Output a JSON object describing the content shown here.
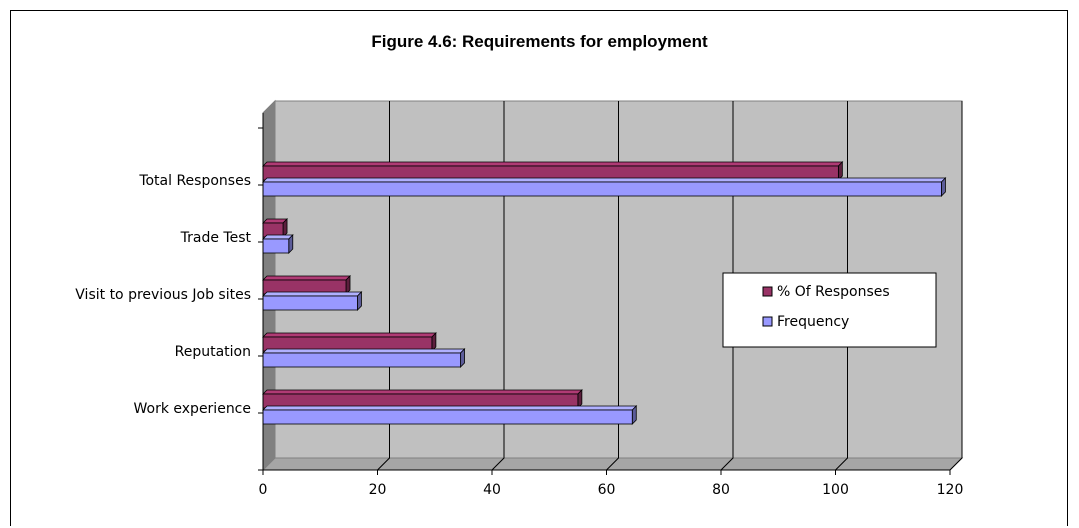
{
  "chart_data": {
    "type": "bar",
    "orientation": "horizontal",
    "title": "Figure 4.6: Requirements for employment",
    "xlabel": "",
    "ylabel": "",
    "categories": [
      "Work experience",
      "Reputation",
      "Visit to previous Job sites",
      "Trade Test",
      "Total Responses"
    ],
    "series": [
      {
        "name": "% Of Responses",
        "values": [
          55,
          29.5,
          14.5,
          3.5,
          100.5
        ],
        "color": "#993366"
      },
      {
        "name": "Frequency",
        "values": [
          64.5,
          34.5,
          16.5,
          4.5,
          118.5
        ],
        "color": "#9999ff"
      }
    ],
    "xlim": [
      0,
      120
    ],
    "xticks": [
      "0",
      "20",
      "40",
      "60",
      "80",
      "100",
      "120"
    ],
    "grid": true,
    "plot_background": "#c0c0c0",
    "legend_position": "right"
  }
}
